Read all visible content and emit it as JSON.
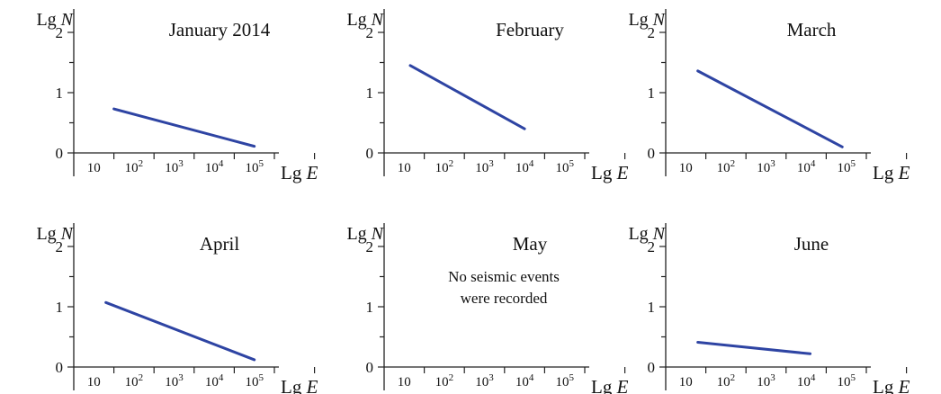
{
  "chart_data": [
    {
      "type": "line",
      "title": "January 2014",
      "ylabel": "Lg N",
      "xlabel": "Lg E",
      "yticks": [
        "0",
        "1",
        "2"
      ],
      "xticks": [
        "10",
        "10²",
        "10³",
        "10⁴",
        "10⁵"
      ],
      "xlim": [
        0.5,
        6
      ],
      "ylim": [
        0,
        2.3
      ],
      "series": [
        {
          "x": [
            1.5,
            5
          ],
          "y": [
            0.73,
            0.11
          ]
        }
      ],
      "note": ""
    },
    {
      "type": "line",
      "title": "February",
      "ylabel": "Lg N",
      "xlabel": "Lg E",
      "yticks": [
        "0",
        "1",
        "2"
      ],
      "xticks": [
        "10",
        "10²",
        "10³",
        "10⁴",
        "10⁵"
      ],
      "xlim": [
        0.5,
        6
      ],
      "ylim": [
        0,
        2.3
      ],
      "series": [
        {
          "x": [
            1.15,
            4
          ],
          "y": [
            1.45,
            0.4
          ]
        }
      ],
      "note": ""
    },
    {
      "type": "line",
      "title": "March",
      "ylabel": "Lg N",
      "xlabel": "Lg E",
      "yticks": [
        "0",
        "1",
        "2"
      ],
      "xticks": [
        "10",
        "10²",
        "10³",
        "10⁴",
        "10⁵"
      ],
      "xlim": [
        0.5,
        6
      ],
      "ylim": [
        0,
        2.3
      ],
      "series": [
        {
          "x": [
            1.3,
            4.9
          ],
          "y": [
            1.36,
            0.1
          ]
        }
      ],
      "note": ""
    },
    {
      "type": "line",
      "title": "April",
      "ylabel": "Lg N",
      "xlabel": "Lg E",
      "yticks": [
        "0",
        "1",
        "2"
      ],
      "xticks": [
        "10",
        "10²",
        "10³",
        "10⁴",
        "10⁵"
      ],
      "xlim": [
        0.5,
        6
      ],
      "ylim": [
        0,
        2.3
      ],
      "series": [
        {
          "x": [
            1.3,
            5
          ],
          "y": [
            1.07,
            0.12
          ]
        }
      ],
      "note": ""
    },
    {
      "type": "line",
      "title": "May",
      "ylabel": "Lg N",
      "xlabel": "Lg E",
      "yticks": [
        "0",
        "1",
        "2"
      ],
      "xticks": [
        "10",
        "10²",
        "10³",
        "10⁴",
        "10⁵"
      ],
      "xlim": [
        0.5,
        6
      ],
      "ylim": [
        0,
        2.3
      ],
      "series": [],
      "note": [
        "No seismic events",
        "were recorded"
      ]
    },
    {
      "type": "line",
      "title": "June",
      "ylabel": "Lg N",
      "xlabel": "Lg E",
      "yticks": [
        "0",
        "1",
        "2"
      ],
      "xticks": [
        "10",
        "10²",
        "10³",
        "10⁴",
        "10⁵"
      ],
      "xlim": [
        0.5,
        6
      ],
      "ylim": [
        0,
        2.3
      ],
      "series": [
        {
          "x": [
            1.3,
            4.1
          ],
          "y": [
            0.41,
            0.22
          ]
        }
      ],
      "note": ""
    }
  ]
}
